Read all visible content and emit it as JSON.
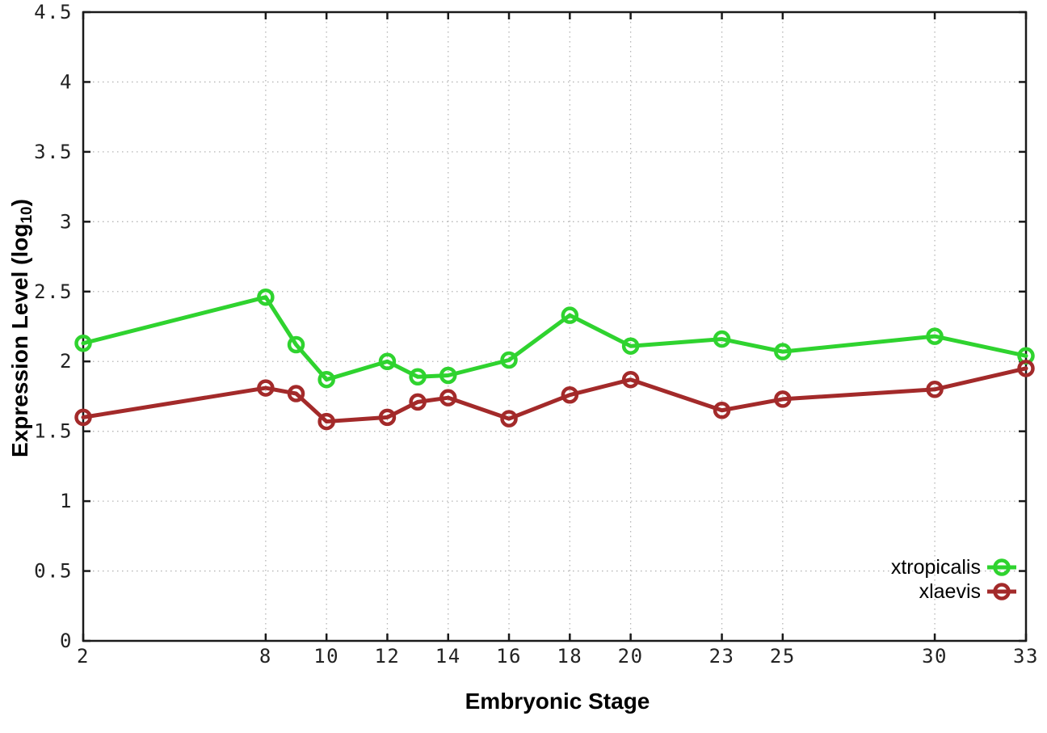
{
  "page": {
    "background_color": "#ffffff"
  },
  "chart_data": {
    "type": "line",
    "title": "",
    "xlabel": "Embryonic Stage",
    "ylabel": "Expression Level (log10)",
    "ylabel_parts": {
      "main": "Expression Level (log",
      "sub": "10",
      "end": ")"
    },
    "x": [
      2,
      8,
      9,
      10,
      12,
      13,
      14,
      16,
      18,
      20,
      23,
      25,
      30,
      33
    ],
    "series": [
      {
        "name": "xtropicalis",
        "color": "#2fd32f",
        "values": [
          2.13,
          2.46,
          2.12,
          1.87,
          2.0,
          1.89,
          1.9,
          2.01,
          2.33,
          2.11,
          2.16,
          2.07,
          2.18,
          2.04
        ]
      },
      {
        "name": "xlaevis",
        "color": "#a32a2a",
        "values": [
          1.6,
          1.81,
          1.77,
          1.57,
          1.6,
          1.71,
          1.74,
          1.59,
          1.76,
          1.87,
          1.65,
          1.73,
          1.8,
          1.95
        ]
      }
    ],
    "xlim": [
      2,
      33
    ],
    "ylim": [
      0,
      4.5
    ],
    "xticks": [
      2,
      8,
      10,
      12,
      14,
      16,
      18,
      20,
      23,
      25,
      30,
      33
    ],
    "yticks": [
      "0",
      "0.5",
      "1",
      "1.5",
      "2",
      "2.5",
      "3",
      "3.5",
      "4",
      "4.5"
    ],
    "grid": true,
    "grid_style": "dotted",
    "legend_position": "bottom-right-inside",
    "marker": "open-circle",
    "axis_color": "#1a1a1a",
    "grid_color": "#b5b5b5",
    "tick_label_color": "#222222"
  }
}
